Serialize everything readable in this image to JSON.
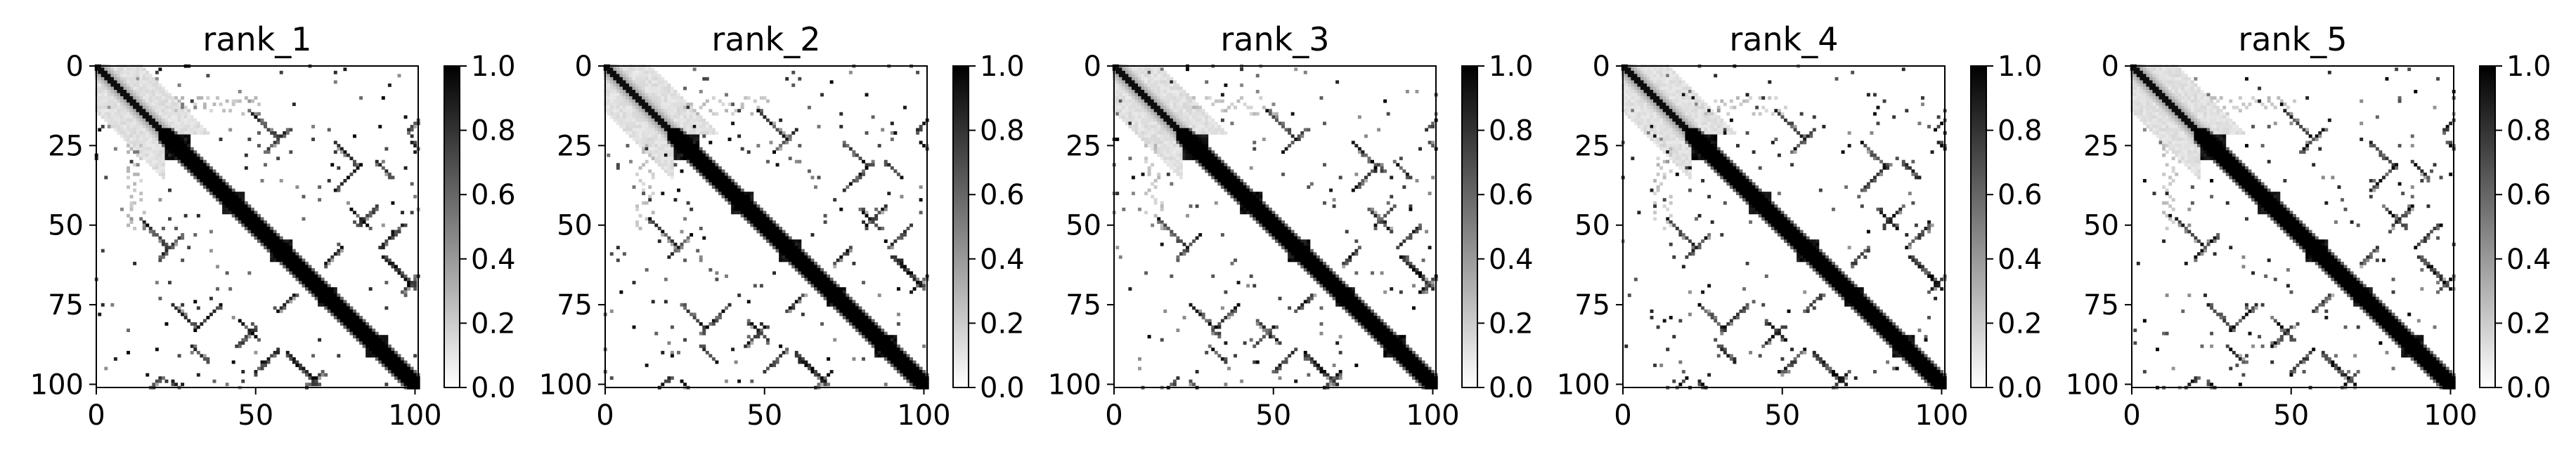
{
  "chart_data": [
    {
      "type": "heatmap",
      "title": "rank_1",
      "matrix_size": 102,
      "xlim": [
        0,
        101
      ],
      "ylim": [
        101,
        0
      ],
      "xticks": [
        0,
        50,
        100
      ],
      "yticks": [
        0,
        25,
        50,
        75,
        100
      ],
      "colormap": "gray_r",
      "colorbar": {
        "min": 0.0,
        "max": 1.0,
        "ticks": [
          "0.0",
          "0.2",
          "0.4",
          "0.6",
          "0.8",
          "1.0"
        ]
      }
    },
    {
      "type": "heatmap",
      "title": "rank_2",
      "matrix_size": 102,
      "xlim": [
        0,
        101
      ],
      "ylim": [
        101,
        0
      ],
      "xticks": [
        0,
        50,
        100
      ],
      "yticks": [
        0,
        25,
        50,
        75,
        100
      ],
      "colormap": "gray_r",
      "colorbar": {
        "min": 0.0,
        "max": 1.0,
        "ticks": [
          "0.0",
          "0.2",
          "0.4",
          "0.6",
          "0.8",
          "1.0"
        ]
      }
    },
    {
      "type": "heatmap",
      "title": "rank_3",
      "matrix_size": 102,
      "xlim": [
        0,
        101
      ],
      "ylim": [
        101,
        0
      ],
      "xticks": [
        0,
        50,
        100
      ],
      "yticks": [
        0,
        25,
        50,
        75,
        100
      ],
      "colormap": "gray_r",
      "colorbar": {
        "min": 0.0,
        "max": 1.0,
        "ticks": [
          "0.0",
          "0.2",
          "0.4",
          "0.6",
          "0.8",
          "1.0"
        ]
      }
    },
    {
      "type": "heatmap",
      "title": "rank_4",
      "matrix_size": 102,
      "xlim": [
        0,
        101
      ],
      "ylim": [
        101,
        0
      ],
      "xticks": [
        0,
        50,
        100
      ],
      "yticks": [
        0,
        25,
        50,
        75,
        100
      ],
      "colormap": "gray_r",
      "colorbar": {
        "min": 0.0,
        "max": 1.0,
        "ticks": [
          "0.0",
          "0.2",
          "0.4",
          "0.6",
          "0.8",
          "1.0"
        ]
      }
    },
    {
      "type": "heatmap",
      "title": "rank_5",
      "matrix_size": 102,
      "xlim": [
        0,
        101
      ],
      "ylim": [
        101,
        0
      ],
      "xticks": [
        0,
        50,
        100
      ],
      "yticks": [
        0,
        25,
        50,
        75,
        100
      ],
      "colormap": "gray_r",
      "colorbar": {
        "min": 0.0,
        "max": 1.0,
        "ticks": [
          "0.0",
          "0.2",
          "0.4",
          "0.6",
          "0.8",
          "1.0"
        ]
      }
    }
  ]
}
